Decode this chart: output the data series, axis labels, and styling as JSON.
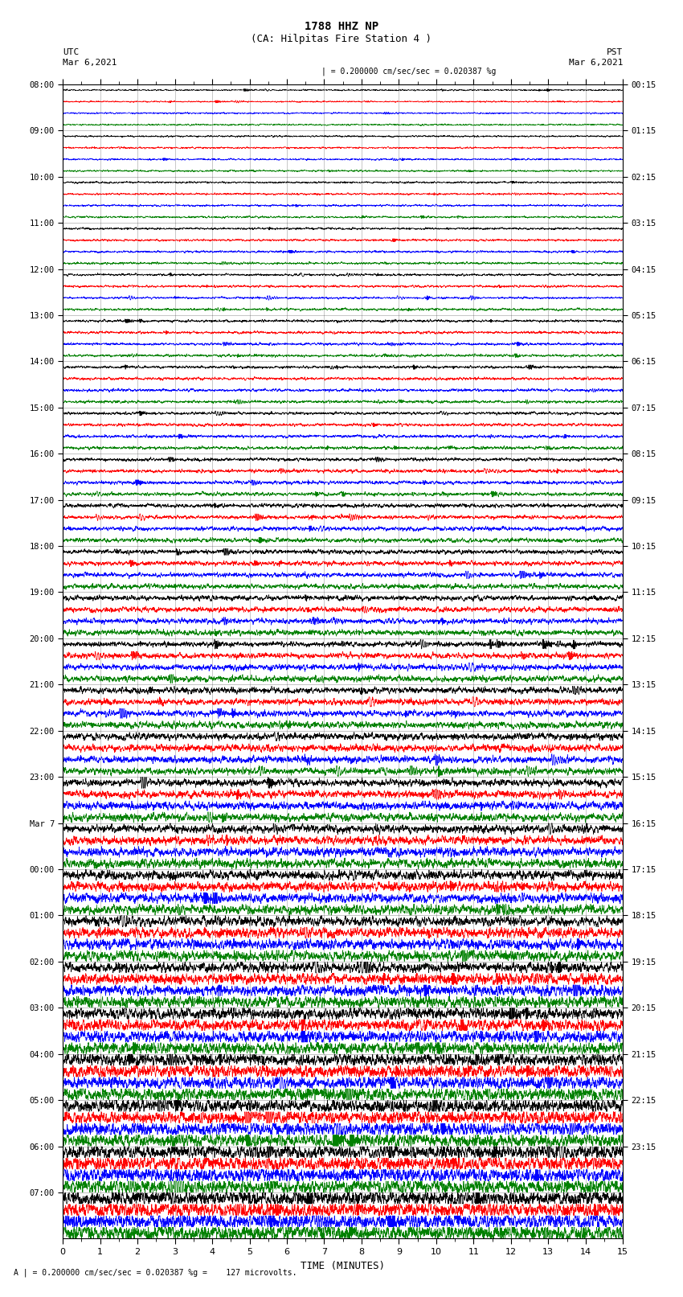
{
  "title_line1": "1788 HHZ NP",
  "title_line2": "(CA: Hilpitas Fire Station 4 )",
  "left_label": "UTC",
  "right_label": "PST",
  "left_date": "Mar 6,2021",
  "right_date": "Mar 6,2021",
  "xlabel": "TIME (MINUTES)",
  "scale_header": "| = 0.200000 cm/sec/sec = 0.020387 %g",
  "scale_footer": "A | = 0.200000 cm/sec/sec = 0.020387 %g =    127 microvolts.",
  "xmin": 0,
  "xmax": 15,
  "trace_colors": [
    "black",
    "red",
    "blue",
    "green"
  ],
  "utc_hour_labels": [
    "08:00",
    "09:00",
    "10:00",
    "11:00",
    "12:00",
    "13:00",
    "14:00",
    "15:00",
    "16:00",
    "17:00",
    "18:00",
    "19:00",
    "20:00",
    "21:00",
    "22:00",
    "23:00",
    "Mar 7",
    "00:00",
    "01:00",
    "02:00",
    "03:00",
    "04:00",
    "05:00",
    "06:00",
    "07:00"
  ],
  "pst_hour_labels": [
    "00:15",
    "01:15",
    "02:15",
    "03:15",
    "04:15",
    "05:15",
    "06:15",
    "07:15",
    "08:15",
    "09:15",
    "10:15",
    "11:15",
    "12:15",
    "13:15",
    "14:15",
    "15:15",
    "16:15",
    "17:15",
    "18:15",
    "19:15",
    "20:15",
    "21:15",
    "22:15",
    "23:15"
  ],
  "n_hours": 25,
  "traces_per_hour": 4,
  "background_color": "#ffffff",
  "seed": 12345
}
